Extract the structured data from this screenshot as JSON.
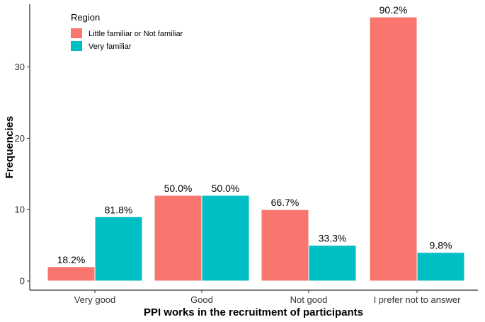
{
  "chart_data": {
    "type": "bar",
    "xlabel": "PPI works in the recruitment of participants",
    "ylabel": "Frequencies",
    "categories": [
      "Very good",
      "Good",
      "Not good",
      "I prefer not to answer"
    ],
    "ylim": [
      0,
      37
    ],
    "yticks": [
      0,
      10,
      20,
      30
    ],
    "grid": false,
    "legend": {
      "title": "Region",
      "placement": "top-left",
      "entries": [
        "Little familiar or Not familiar",
        "Very familiar"
      ]
    },
    "series": [
      {
        "name": "Little familiar or Not familiar",
        "color": "#F8766D",
        "values": [
          2,
          12,
          10,
          37
        ],
        "labels": [
          "18.2%",
          "50.0%",
          "66.7%",
          "90.2%"
        ]
      },
      {
        "name": "Very familiar",
        "color": "#00BFC4",
        "values": [
          9,
          12,
          5,
          4
        ],
        "labels": [
          "81.8%",
          "50.0%",
          "33.3%",
          "9.8%"
        ]
      }
    ]
  }
}
